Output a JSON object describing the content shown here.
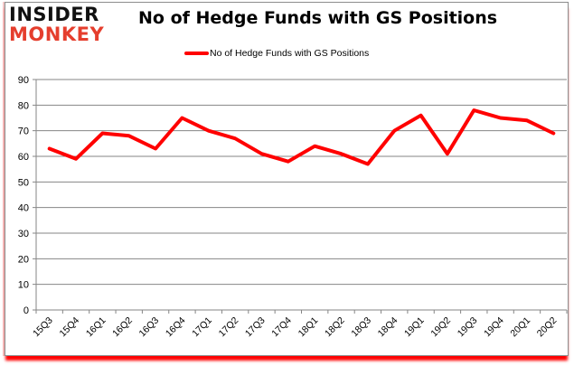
{
  "brand": {
    "logo_top": "INSIDER",
    "logo_bottom": "MONKEY",
    "logo_top_color": "#111111",
    "logo_bottom_color": "#e53e2d"
  },
  "header": {
    "title": "No of Hedge Funds with GS Positions"
  },
  "legend": {
    "items": [
      {
        "label": "No of Hedge Funds with GS Positions",
        "color": "#ff0000"
      }
    ]
  },
  "chart_data": {
    "type": "line",
    "title": "No of Hedge Funds with GS Positions",
    "xlabel": "",
    "ylabel": "",
    "ylim": [
      0,
      90
    ],
    "yticks": [
      0,
      10,
      20,
      30,
      40,
      50,
      60,
      70,
      80,
      90
    ],
    "grid": true,
    "legend_position": "top",
    "categories": [
      "15Q3",
      "15Q4",
      "16Q1",
      "16Q2",
      "16Q3",
      "16Q4",
      "17Q1",
      "17Q2",
      "17Q3",
      "17Q4",
      "18Q1",
      "18Q2",
      "18Q3",
      "18Q4",
      "19Q1",
      "19Q2",
      "19Q3",
      "19Q4",
      "20Q1",
      "20Q2"
    ],
    "series": [
      {
        "name": "No of Hedge Funds with GS Positions",
        "color": "#ff0000",
        "values": [
          63,
          59,
          69,
          68,
          63,
          75,
          70,
          67,
          61,
          58,
          64,
          61,
          57,
          70,
          76,
          61,
          78,
          75,
          74,
          69
        ]
      }
    ]
  }
}
